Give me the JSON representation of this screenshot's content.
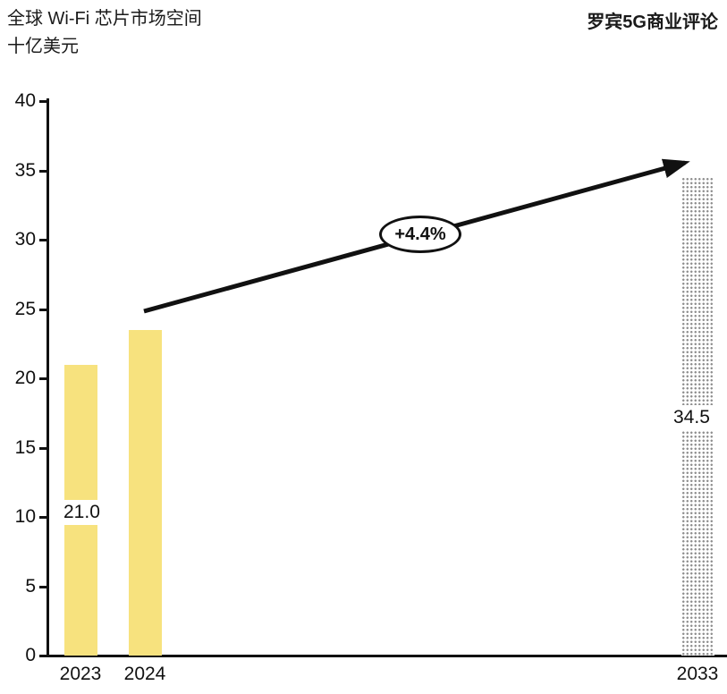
{
  "header": {
    "title_line1": "全球 Wi-Fi 芯片市场空间",
    "title_line2": "十亿美元",
    "source": "罗宾5G商业评论"
  },
  "chart_data": {
    "type": "bar",
    "title": "全球 Wi-Fi 芯片市场空间",
    "ylabel": "十亿美元",
    "categories": [
      "2023",
      "2024",
      "2033"
    ],
    "values": [
      21.0,
      23.5,
      34.5
    ],
    "value_labels": [
      "21.0",
      "",
      "34.5"
    ],
    "styles": [
      "solid",
      "solid",
      "dotted"
    ],
    "ylim": [
      0,
      40
    ],
    "yticks": [
      0,
      5,
      10,
      15,
      20,
      25,
      30,
      35,
      40
    ],
    "grid": "off",
    "annotation": {
      "label": "+4.4%",
      "meaning": "CAGR from 2024 to 2033"
    },
    "colors": {
      "bar_fill": "#F7E27E",
      "forecast_dot": "#8F8F8F",
      "axis": "#111111",
      "arrow": "#111111"
    }
  }
}
